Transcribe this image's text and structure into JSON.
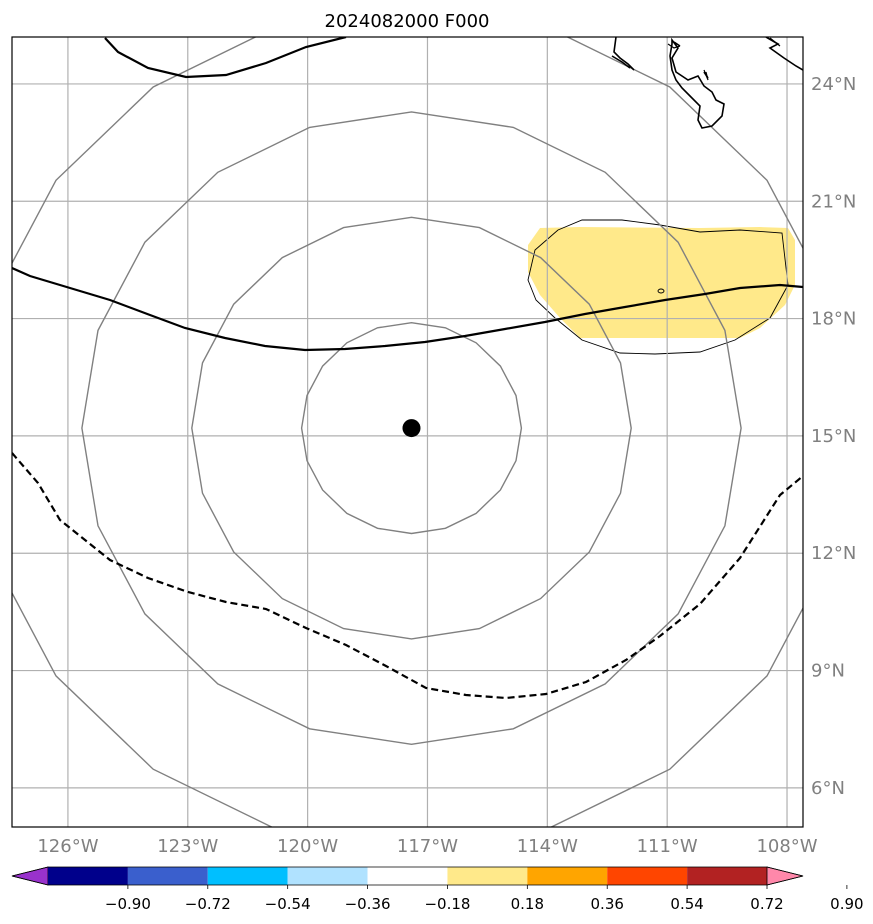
{
  "title": "2024082000 F000",
  "map": {
    "lon_range": [
      -127.4,
      -107.6
    ],
    "lat_range": [
      5.0,
      25.2
    ],
    "gridlines": true,
    "lon_ticks": [
      {
        "value": -126,
        "label": "126°W"
      },
      {
        "value": -123,
        "label": "123°W"
      },
      {
        "value": -120,
        "label": "120°W"
      },
      {
        "value": -117,
        "label": "117°W"
      },
      {
        "value": -114,
        "label": "114°W"
      },
      {
        "value": -111,
        "label": "111°W"
      },
      {
        "value": -108,
        "label": "108°W"
      }
    ],
    "lat_ticks": [
      {
        "value": 6,
        "label": "6°N"
      },
      {
        "value": 9,
        "label": "9°N"
      },
      {
        "value": 12,
        "label": "12°N"
      },
      {
        "value": 15,
        "label": "15°N"
      },
      {
        "value": 18,
        "label": "18°N"
      },
      {
        "value": 21,
        "label": "21°N"
      },
      {
        "value": 24,
        "label": "24°N"
      }
    ],
    "storm_center": {
      "lon": -117.4,
      "lat": 15.2
    },
    "range_rings_deg": [
      2.75,
      5.5,
      8.25,
      11.0
    ],
    "colors": {
      "rings": "#808080",
      "grid": "#b0b0b0",
      "fill": "#ffe98a",
      "lines": "#000000"
    }
  },
  "colorbar": {
    "boundaries": [
      "−0.90",
      "−0.72",
      "−0.54",
      "−0.36",
      "−0.18",
      "0.18",
      "0.36",
      "0.54",
      "0.72",
      "0.90"
    ],
    "colors": [
      "#9932cc",
      "#00008b",
      "#3a5fcd",
      "#00bfff",
      "#b0e2ff",
      "#ffffff",
      "#ffe98a",
      "#ffa500",
      "#ff4500",
      "#b22222",
      "#ff88aa"
    ]
  }
}
